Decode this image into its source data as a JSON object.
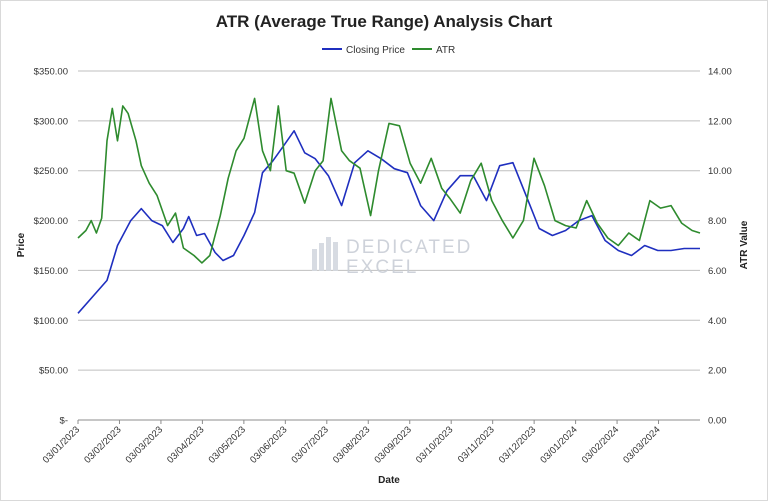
{
  "chart_data": {
    "type": "line",
    "title": "ATR (Average True Range) Analysis Chart",
    "xlabel": "Date",
    "ylabel": "Price",
    "y2label": "ATR Value",
    "ylim": [
      0,
      350
    ],
    "y2lim": [
      0,
      14
    ],
    "yticks": [
      "$-",
      "$50.00",
      "$100.00",
      "$150.00",
      "$200.00",
      "$250.00",
      "$300.00",
      "$350.00"
    ],
    "y2ticks": [
      "0.00",
      "2.00",
      "4.00",
      "6.00",
      "8.00",
      "10.00",
      "12.00",
      "14.00"
    ],
    "xticks": [
      "03/01/2023",
      "03/02/2023",
      "03/03/2023",
      "03/04/2023",
      "03/05/2023",
      "03/06/2023",
      "03/07/2023",
      "03/08/2023",
      "03/09/2023",
      "03/10/2023",
      "03/11/2023",
      "03/12/2023",
      "03/01/2024",
      "03/02/2024",
      "03/03/2024"
    ],
    "grid": true,
    "legend_position": "top",
    "x_day_range": [
      0,
      472
    ],
    "series": [
      {
        "name": "Closing Price",
        "axis": "left",
        "color": "#1f2fbf",
        "x": [
          0,
          12,
          22,
          30,
          40,
          48,
          56,
          64,
          72,
          80,
          84,
          90,
          96,
          104,
          110,
          118,
          126,
          134,
          140,
          148,
          156,
          164,
          172,
          180,
          190,
          200,
          210,
          220,
          230,
          240,
          250,
          260,
          270,
          280,
          290,
          300,
          310,
          320,
          330,
          340,
          350,
          360,
          370,
          380,
          390,
          400,
          410,
          420,
          430,
          440,
          450,
          460,
          472
        ],
        "values": [
          107,
          125,
          140,
          175,
          200,
          212,
          200,
          195,
          178,
          192,
          204,
          185,
          187,
          168,
          160,
          165,
          185,
          208,
          248,
          260,
          275,
          290,
          268,
          262,
          245,
          215,
          258,
          270,
          262,
          252,
          248,
          215,
          200,
          230,
          245,
          245,
          220,
          255,
          258,
          225,
          192,
          185,
          190,
          200,
          205,
          180,
          170,
          165,
          175,
          170,
          170,
          172,
          172
        ]
      },
      {
        "name": "ATR",
        "axis": "right",
        "color": "#2e8b2e",
        "x": [
          0,
          6,
          10,
          14,
          18,
          22,
          26,
          30,
          34,
          38,
          44,
          48,
          54,
          60,
          68,
          74,
          80,
          88,
          94,
          100,
          108,
          114,
          120,
          126,
          134,
          140,
          146,
          152,
          158,
          164,
          172,
          180,
          186,
          192,
          200,
          206,
          214,
          222,
          228,
          236,
          244,
          252,
          260,
          268,
          276,
          282,
          290,
          298,
          306,
          314,
          322,
          330,
          338,
          346,
          354,
          362,
          370,
          378,
          386,
          394,
          402,
          410,
          418,
          426,
          434,
          442,
          450,
          458,
          466,
          472
        ],
        "values": [
          7.3,
          7.6,
          8.0,
          7.5,
          8.1,
          11.2,
          12.5,
          11.2,
          12.6,
          12.3,
          11.2,
          10.2,
          9.5,
          9.0,
          7.8,
          8.3,
          6.9,
          6.6,
          6.3,
          6.6,
          8.2,
          9.7,
          10.8,
          11.3,
          12.9,
          10.8,
          10.0,
          12.6,
          10.0,
          9.9,
          8.7,
          10.0,
          10.4,
          12.9,
          10.8,
          10.4,
          10.1,
          8.2,
          10.0,
          11.9,
          11.8,
          10.3,
          9.5,
          10.5,
          9.3,
          8.9,
          8.3,
          9.6,
          10.3,
          8.8,
          8.0,
          7.3,
          8.0,
          10.5,
          9.4,
          8.0,
          7.8,
          7.7,
          8.8,
          7.9,
          7.3,
          7.0,
          7.5,
          7.2,
          8.8,
          8.5,
          8.6,
          7.9,
          7.6,
          7.5
        ]
      }
    ]
  },
  "watermark": {
    "line1": "DEDICATED",
    "line2": "EXCEL"
  }
}
